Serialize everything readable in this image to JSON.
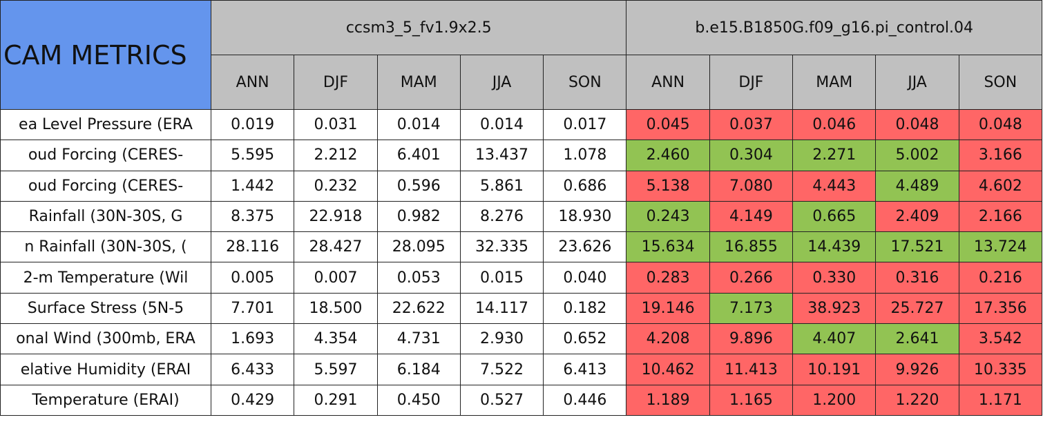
{
  "header": {
    "title": "CAM METRICS",
    "cases": [
      "ccsm3_5_fv1.9x2.5",
      "b.e15.B1850G.f09_g16.pi_control.04"
    ],
    "seasons": [
      "ANN",
      "DJF",
      "MAM",
      "JJA",
      "SON"
    ]
  },
  "colors": {
    "header": "#c0c0c0",
    "title": "#6495ed",
    "plain": "#ffffff",
    "worse": "#ff6666",
    "better": "#92c353"
  },
  "table": {
    "rows": [
      {
        "label": "ea Level Pressure (ERA",
        "values": [
          "0.019",
          "0.031",
          "0.014",
          "0.014",
          "0.017",
          "0.045",
          "0.037",
          "0.046",
          "0.048",
          "0.048"
        ],
        "status": [
          "worse",
          "worse",
          "worse",
          "worse",
          "worse"
        ]
      },
      {
        "label": "oud Forcing (CERES-",
        "values": [
          "5.595",
          "2.212",
          "6.401",
          "13.437",
          "1.078",
          "2.460",
          "0.304",
          "2.271",
          "5.002",
          "3.166"
        ],
        "status": [
          "better",
          "better",
          "better",
          "better",
          "worse"
        ]
      },
      {
        "label": "oud Forcing (CERES-",
        "values": [
          "1.442",
          "0.232",
          "0.596",
          "5.861",
          "0.686",
          "5.138",
          "7.080",
          "4.443",
          "4.489",
          "4.602"
        ],
        "status": [
          "worse",
          "worse",
          "worse",
          "better",
          "worse"
        ]
      },
      {
        "label": "Rainfall (30N-30S, G",
        "values": [
          "8.375",
          "22.918",
          "0.982",
          "8.276",
          "18.930",
          "0.243",
          "4.149",
          "0.665",
          "2.409",
          "2.166"
        ],
        "status": [
          "better",
          "worse",
          "better",
          "worse",
          "worse"
        ]
      },
      {
        "label": "n Rainfall (30N-30S, (",
        "values": [
          "28.116",
          "28.427",
          "28.095",
          "32.335",
          "23.626",
          "15.634",
          "16.855",
          "14.439",
          "17.521",
          "13.724"
        ],
        "status": [
          "better",
          "better",
          "better",
          "better",
          "better"
        ]
      },
      {
        "label": "2-m Temperature (Wil",
        "values": [
          "0.005",
          "0.007",
          "0.053",
          "0.015",
          "0.040",
          "0.283",
          "0.266",
          "0.330",
          "0.316",
          "0.216"
        ],
        "status": [
          "worse",
          "worse",
          "worse",
          "worse",
          "worse"
        ]
      },
      {
        "label": "Surface Stress (5N-5",
        "values": [
          "7.701",
          "18.500",
          "22.622",
          "14.117",
          "0.182",
          "19.146",
          "7.173",
          "38.923",
          "25.727",
          "17.356"
        ],
        "status": [
          "worse",
          "better",
          "worse",
          "worse",
          "worse"
        ]
      },
      {
        "label": "onal Wind (300mb, ERA",
        "values": [
          "1.693",
          "4.354",
          "4.731",
          "2.930",
          "0.652",
          "4.208",
          "9.896",
          "4.407",
          "2.641",
          "3.542"
        ],
        "status": [
          "worse",
          "worse",
          "better",
          "better",
          "worse"
        ]
      },
      {
        "label": "elative Humidity (ERAI",
        "values": [
          "6.433",
          "5.597",
          "6.184",
          "7.522",
          "6.413",
          "10.462",
          "11.413",
          "10.191",
          "9.926",
          "10.335"
        ],
        "status": [
          "worse",
          "worse",
          "worse",
          "worse",
          "worse"
        ]
      },
      {
        "label": "Temperature (ERAI)",
        "values": [
          "0.429",
          "0.291",
          "0.450",
          "0.527",
          "0.446",
          "1.189",
          "1.165",
          "1.200",
          "1.220",
          "1.171"
        ],
        "status": [
          "worse",
          "worse",
          "worse",
          "worse",
          "worse"
        ]
      }
    ]
  }
}
